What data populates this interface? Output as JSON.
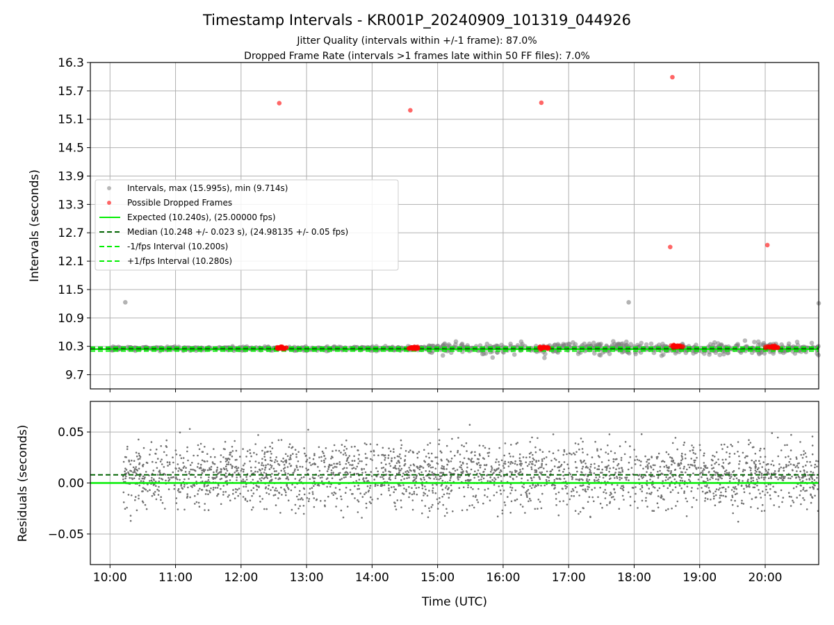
{
  "title": "Timestamp Intervals - KR001P_20240909_101319_044926",
  "subtitle_lines": [
    "Jitter Quality (intervals within +/-1 frame): 87.0%",
    "Dropped Frame Rate (intervals >1 frames late within 50 FF files): 7.0%"
  ],
  "colors": {
    "intervals": "#808080",
    "dropped": "#ff0000",
    "expected": "#00ee00",
    "median": "#006400",
    "bounds": "#00ee00"
  },
  "chart_data": [
    {
      "type": "scatter",
      "ylabel": "Intervals (seconds)",
      "xlabel": "",
      "xlim": [
        "09:42",
        "20:49"
      ],
      "ylim": [
        9.4,
        16.3
      ],
      "yticks": [
        9.7,
        10.3,
        10.9,
        11.5,
        12.1,
        12.7,
        13.3,
        13.9,
        14.5,
        15.1,
        15.7,
        16.3
      ],
      "ytick_labels": [
        "9.7",
        "10.3",
        "10.9",
        "11.5",
        "12.1",
        "12.7",
        "13.3",
        "13.9",
        "14.5",
        "15.1",
        "15.7",
        "16.3"
      ],
      "grid": true,
      "legend_placement": "center-left",
      "legend": [
        "Intervals, max (15.995s), min (9.714s)",
        "Possible Dropped Frames",
        "Expected (10.240s), (25.00000 fps)",
        "Median (10.248 +/- 0.023 s), (24.98135 +/- 0.05 fps)",
        "-1/fps Interval (10.200s)",
        "+1/fps Interval (10.280s)"
      ],
      "reference_lines": {
        "expected": 10.24,
        "median": 10.248,
        "minus_one_fps": 10.2,
        "plus_one_fps": 10.28
      },
      "interval_outliers": [
        {
          "x": "10:14",
          "y": 11.23
        },
        {
          "x": "17:55",
          "y": 11.23
        },
        {
          "x": "20:49",
          "y": 11.21
        }
      ],
      "dropped_frames": [
        {
          "x": "12:35",
          "y": 15.44
        },
        {
          "x": "14:35",
          "y": 15.29
        },
        {
          "x": "16:35",
          "y": 15.45
        },
        {
          "x": "18:35",
          "y": 15.99
        },
        {
          "x": "18:33",
          "y": 12.4
        },
        {
          "x": "20:02",
          "y": 12.44
        }
      ],
      "dropped_clusters": [
        {
          "start": "12:33",
          "end": "12:42",
          "y": 10.27
        },
        {
          "start": "14:33",
          "end": "14:42",
          "y": 10.27
        },
        {
          "start": "16:33",
          "end": "16:42",
          "y": 10.27
        },
        {
          "start": "18:33",
          "end": "18:45",
          "y": 10.3
        },
        {
          "start": "20:00",
          "end": "20:12",
          "y": 10.28
        }
      ],
      "note_dense_scatter": "Dense band of interval samples around 10.25 s spanning 10:00–20:49"
    },
    {
      "type": "scatter",
      "ylabel": "Residuals (seconds)",
      "xlabel": "Time (UTC)",
      "xlim": [
        "09:42",
        "20:49"
      ],
      "ylim": [
        -0.08,
        0.08
      ],
      "yticks": [
        -0.05,
        0.0,
        0.05
      ],
      "ytick_labels": [
        "−0.05",
        "0.00",
        "0.05"
      ],
      "xticks": [
        "10:00",
        "11:00",
        "12:00",
        "13:00",
        "14:00",
        "15:00",
        "16:00",
        "17:00",
        "18:00",
        "19:00",
        "20:00"
      ],
      "grid": true,
      "reference_lines": {
        "zero": 0.0,
        "median_offset": 0.008
      }
    }
  ]
}
